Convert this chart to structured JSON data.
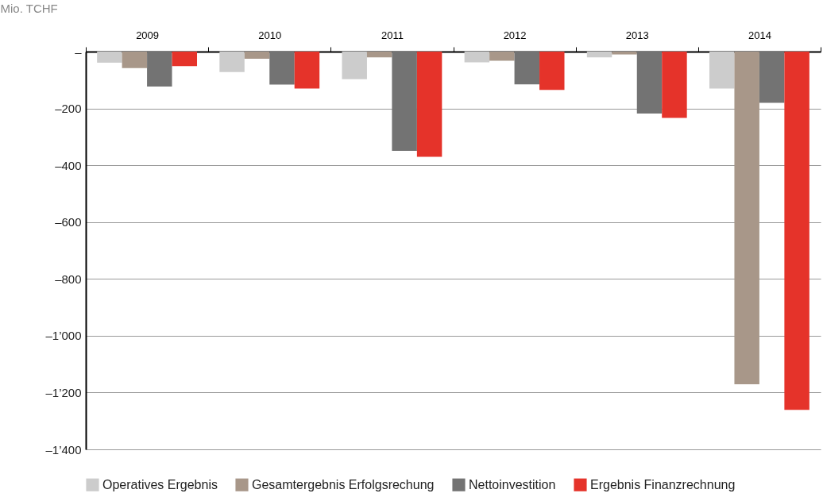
{
  "chart_data": {
    "type": "bar",
    "ylabel": "Mio. TCHF",
    "categories": [
      "2009",
      "2010",
      "2011",
      "2012",
      "2013",
      "2014"
    ],
    "series": [
      {
        "name": "Operatives Ergebnis",
        "color": "#cccccc",
        "values": [
          -39,
          -72,
          -97,
          -38,
          -20,
          -130
        ]
      },
      {
        "name": "Gesamtergebnis Erfolgsrechung",
        "color": "#a89789",
        "values": [
          -58,
          -25,
          -20,
          -32,
          -10,
          -1171
        ]
      },
      {
        "name": "Nettoinvestition",
        "color": "#737373",
        "values": [
          -123,
          -116,
          -349,
          -115,
          -218,
          -180
        ]
      },
      {
        "name": "Ergebnis Finanzrechnung",
        "color": "#e5332a",
        "values": [
          -51,
          -130,
          -370,
          -135,
          -233,
          -1261
        ]
      }
    ],
    "ylim": [
      -1400,
      0
    ],
    "yticks": [
      {
        "value": 0,
        "label": "–"
      },
      {
        "value": -200,
        "label": "–200"
      },
      {
        "value": -400,
        "label": "–400"
      },
      {
        "value": -600,
        "label": "–600"
      },
      {
        "value": -800,
        "label": "–800"
      },
      {
        "value": -1000,
        "label": "–1’000"
      },
      {
        "value": -1200,
        "label": "–1’200"
      },
      {
        "value": -1400,
        "label": "–1’400"
      }
    ],
    "grid": "y",
    "legend": "bottom"
  }
}
